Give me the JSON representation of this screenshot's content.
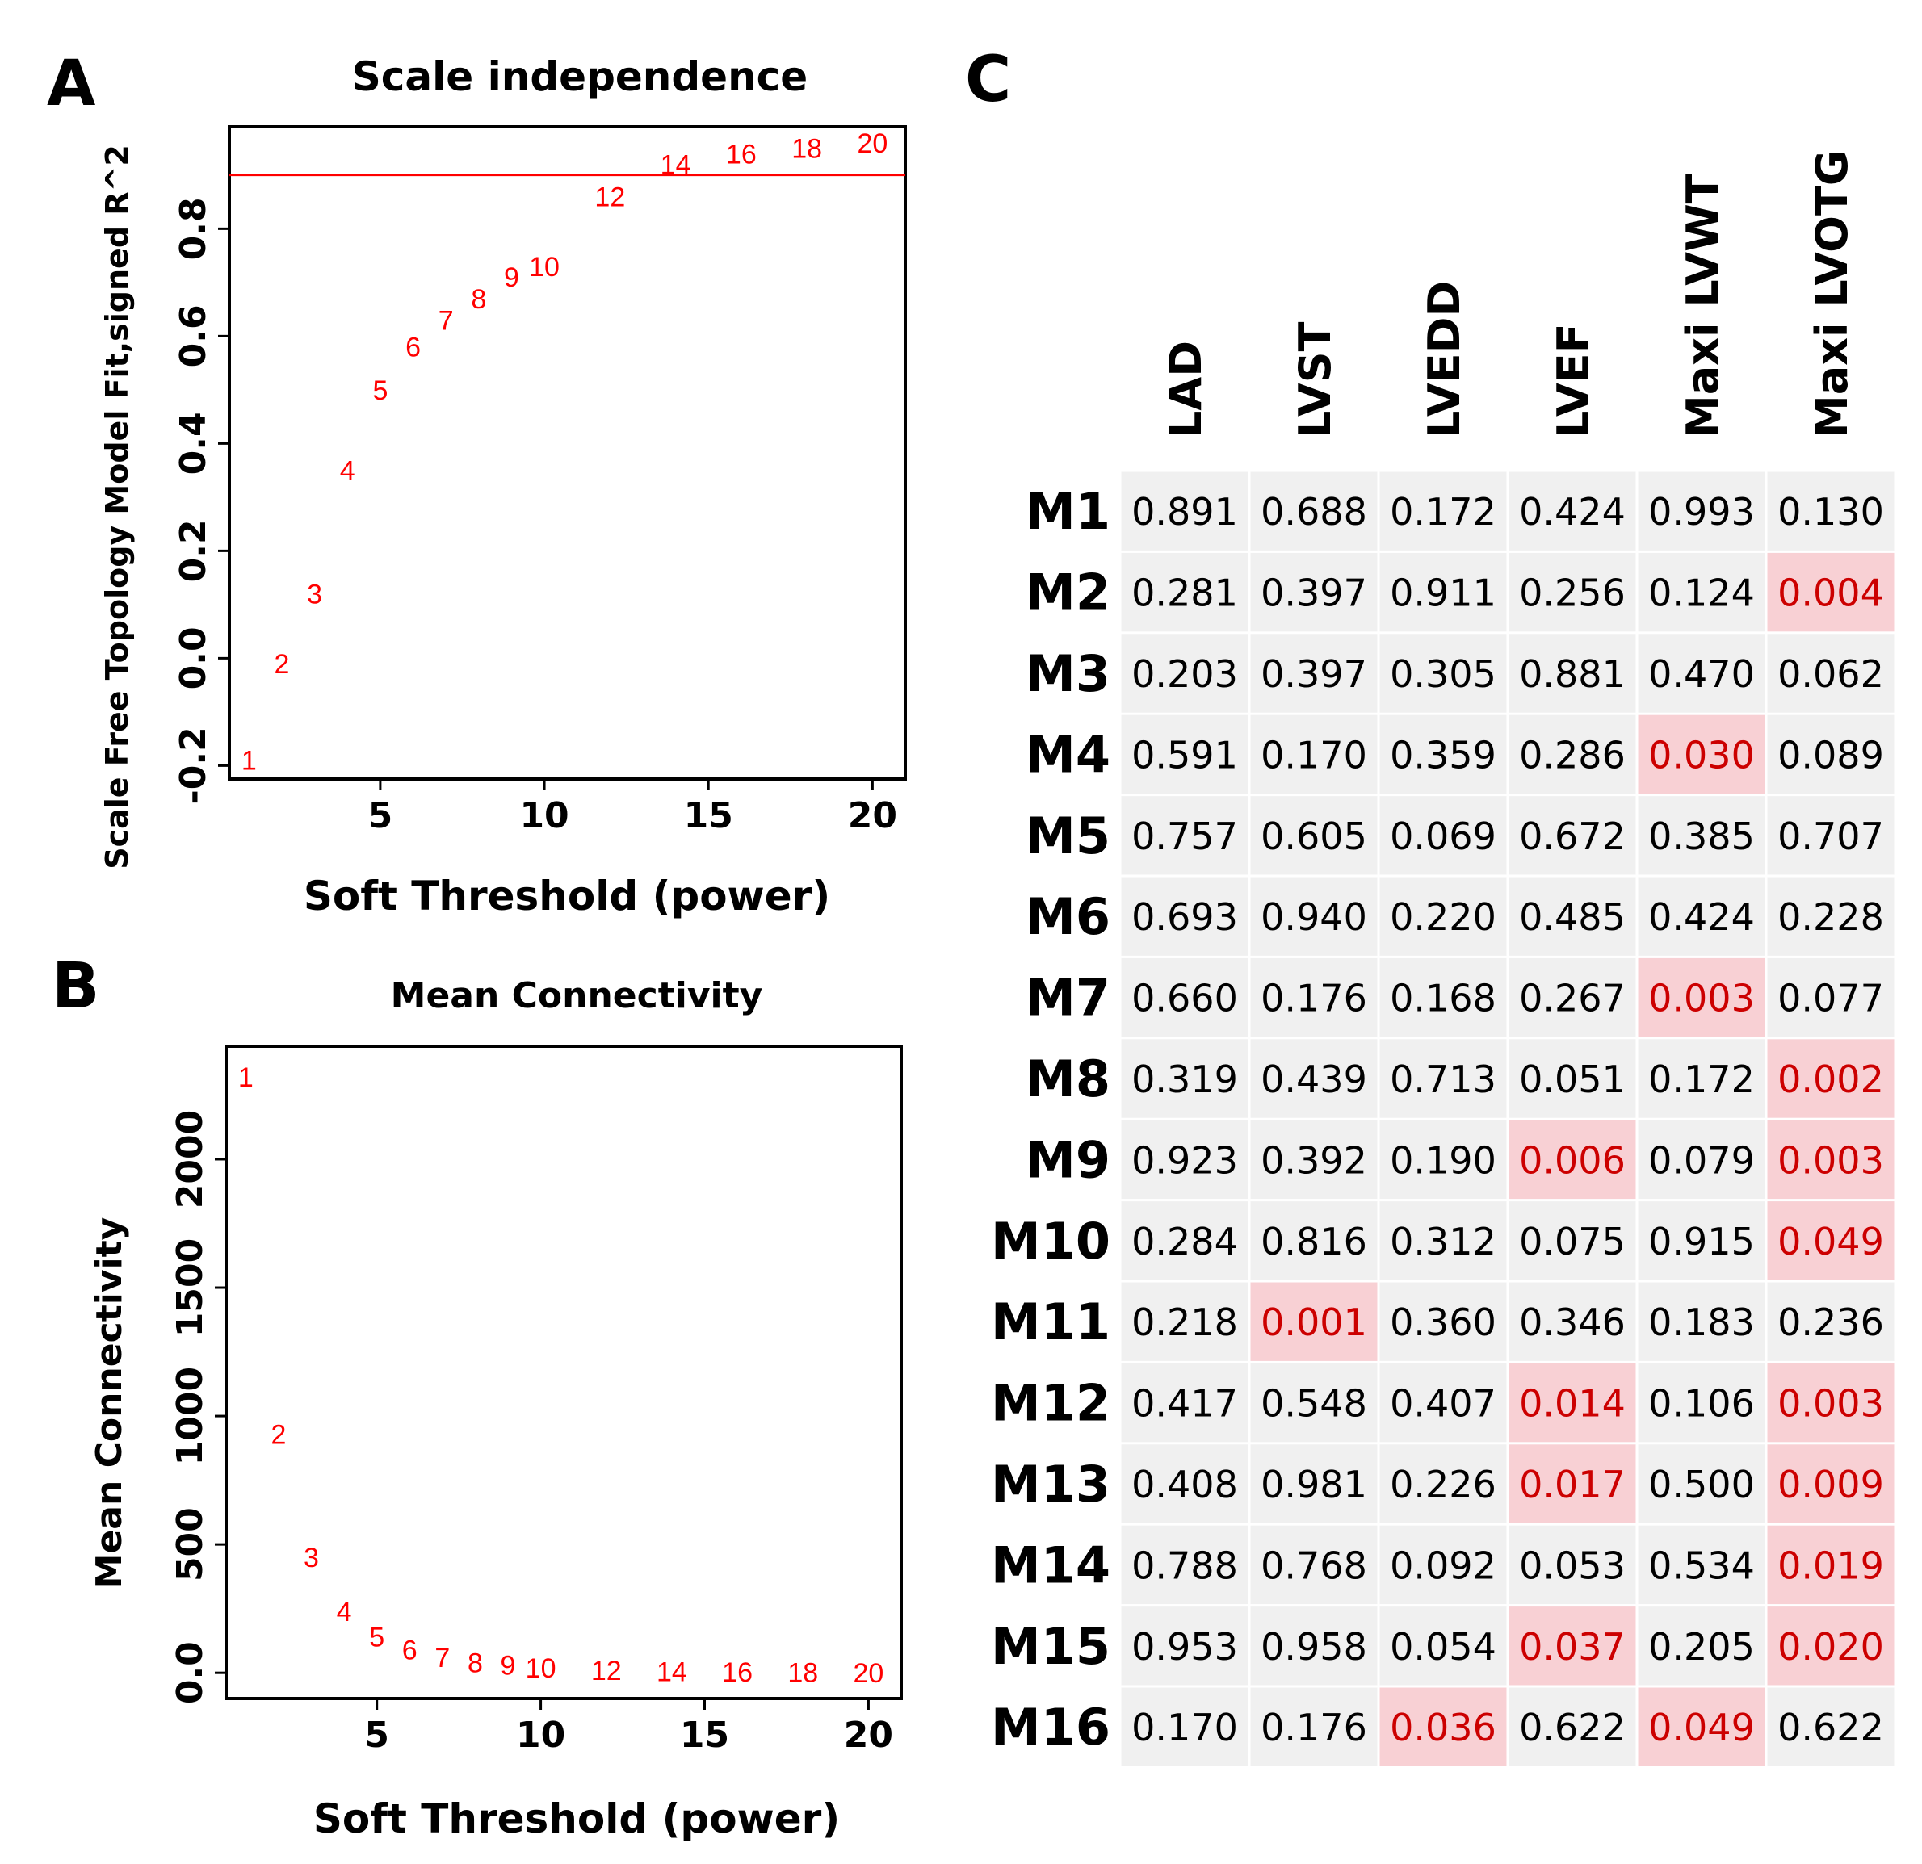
{
  "panels": {
    "a": {
      "letter": "A"
    },
    "b": {
      "letter": "B"
    },
    "c": {
      "letter": "C"
    }
  },
  "colors": {
    "points": "#ff0000",
    "highlight_fill": "#f8d0d4",
    "highlight_text": "#cc0000",
    "cell_fill": "#f0f0f0"
  },
  "chart_data": [
    {
      "id": "A",
      "type": "scatter",
      "title": "Scale independence",
      "xlabel": "Soft Threshold (power)",
      "ylabel": "Scale Free Topology Model Fit,signed R^2",
      "xlim": [
        0.4,
        21
      ],
      "ylim": [
        -0.225,
        0.99
      ],
      "xticks": [
        5,
        10,
        15,
        20
      ],
      "yticks": [
        -0.2,
        0.0,
        0.2,
        0.4,
        0.6,
        0.8
      ],
      "hline": 0.9,
      "hline_color": "#ff0000",
      "x": [
        1,
        2,
        3,
        4,
        5,
        6,
        7,
        8,
        9,
        10,
        12,
        14,
        16,
        18,
        20
      ],
      "y": [
        -0.19,
        -0.01,
        0.12,
        0.35,
        0.5,
        0.58,
        0.63,
        0.67,
        0.71,
        0.73,
        0.86,
        0.92,
        0.94,
        0.95,
        0.96
      ],
      "labels": [
        "1",
        "2",
        "3",
        "4",
        "5",
        "6",
        "7",
        "8",
        "9",
        "10",
        "12",
        "14",
        "16",
        "18",
        "20"
      ]
    },
    {
      "id": "B",
      "type": "scatter",
      "title": "Mean Connectivity",
      "xlabel": "Soft Threshold (power)",
      "ylabel": "Mean Connectivity",
      "xlim": [
        0.4,
        21
      ],
      "ylim": [
        -100,
        2440
      ],
      "xticks": [
        5,
        10,
        15,
        20
      ],
      "yticks": [
        0,
        500,
        1000,
        1500,
        2000
      ],
      "x": [
        1,
        2,
        3,
        4,
        5,
        6,
        7,
        8,
        9,
        10,
        12,
        14,
        16,
        18,
        20
      ],
      "y": [
        2320,
        930,
        450,
        240,
        140,
        90,
        60,
        40,
        30,
        20,
        10,
        5,
        3,
        2,
        1
      ],
      "labels": [
        "1",
        "2",
        "3",
        "4",
        "5",
        "6",
        "7",
        "8",
        "9",
        "10",
        "12",
        "14",
        "16",
        "18",
        "20"
      ]
    },
    {
      "id": "C",
      "type": "table",
      "columns": [
        "LAD",
        "LVST",
        "LVEDD",
        "LVEF",
        "Maxi LVWT",
        "Maxi LVOTG"
      ],
      "rows": [
        "M1",
        "M2",
        "M3",
        "M4",
        "M5",
        "M6",
        "M7",
        "M8",
        "M9",
        "M10",
        "M11",
        "M12",
        "M13",
        "M14",
        "M15",
        "M16"
      ],
      "significance_threshold": 0.05,
      "values": [
        [
          "0.891",
          "0.688",
          "0.172",
          "0.424",
          "0.993",
          "0.130"
        ],
        [
          "0.281",
          "0.397",
          "0.911",
          "0.256",
          "0.124",
          "0.004"
        ],
        [
          "0.203",
          "0.397",
          "0.305",
          "0.881",
          "0.470",
          "0.062"
        ],
        [
          "0.591",
          "0.170",
          "0.359",
          "0.286",
          "0.030",
          "0.089"
        ],
        [
          "0.757",
          "0.605",
          "0.069",
          "0.672",
          "0.385",
          "0.707"
        ],
        [
          "0.693",
          "0.940",
          "0.220",
          "0.485",
          "0.424",
          "0.228"
        ],
        [
          "0.660",
          "0.176",
          "0.168",
          "0.267",
          "0.003",
          "0.077"
        ],
        [
          "0.319",
          "0.439",
          "0.713",
          "0.051",
          "0.172",
          "0.002"
        ],
        [
          "0.923",
          "0.392",
          "0.190",
          "0.006",
          "0.079",
          "0.003"
        ],
        [
          "0.284",
          "0.816",
          "0.312",
          "0.075",
          "0.915",
          "0.049"
        ],
        [
          "0.218",
          "0.001",
          "0.360",
          "0.346",
          "0.183",
          "0.236"
        ],
        [
          "0.417",
          "0.548",
          "0.407",
          "0.014",
          "0.106",
          "0.003"
        ],
        [
          "0.408",
          "0.981",
          "0.226",
          "0.017",
          "0.500",
          "0.009"
        ],
        [
          "0.788",
          "0.768",
          "0.092",
          "0.053",
          "0.534",
          "0.019"
        ],
        [
          "0.953",
          "0.958",
          "0.054",
          "0.037",
          "0.205",
          "0.020"
        ],
        [
          "0.170",
          "0.176",
          "0.036",
          "0.622",
          "0.049",
          "0.622"
        ]
      ]
    }
  ]
}
